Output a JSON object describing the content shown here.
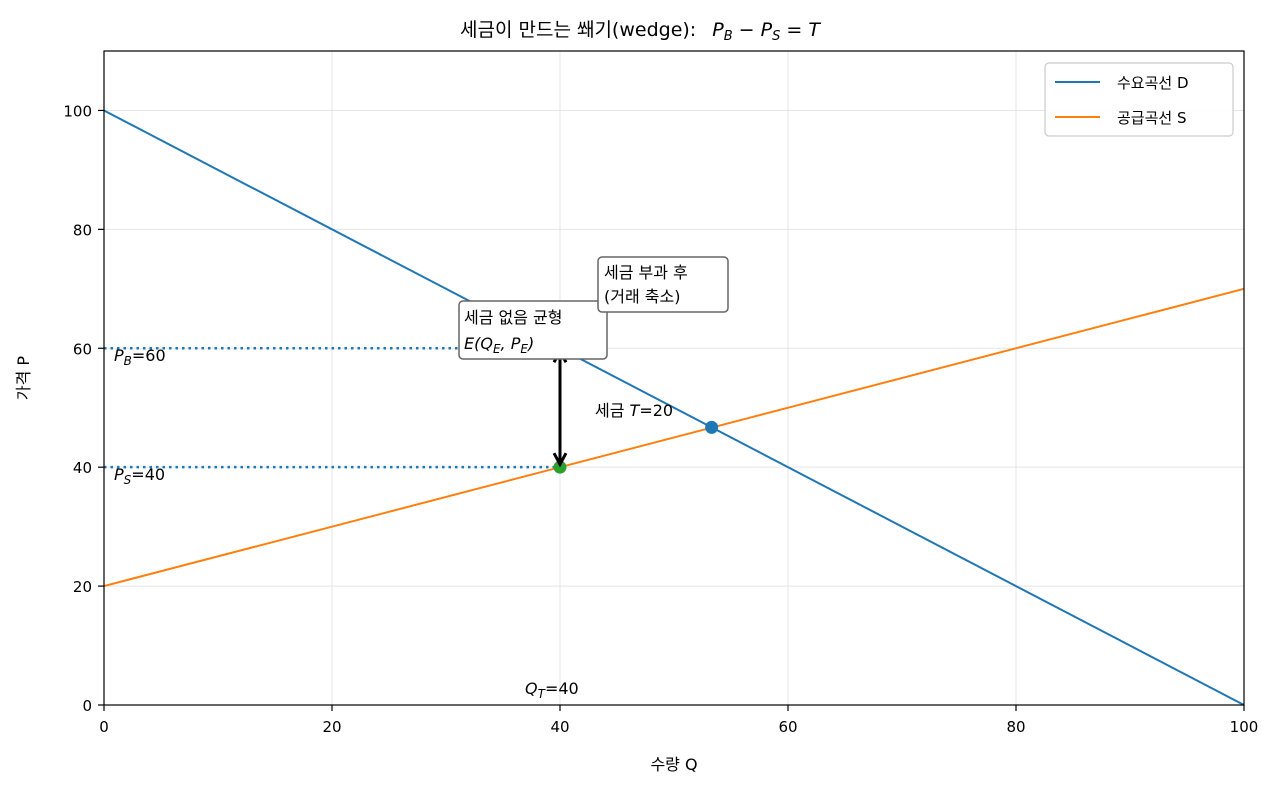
{
  "chart_data": {
    "type": "line",
    "title_main": "세금이 만드는 쐐기(wedge):",
    "title_math": [
      "P",
      "B",
      " − ",
      "P",
      "S",
      " = ",
      "T"
    ],
    "xlabel": "수량 Q",
    "ylabel": "가격 P",
    "xlim": [
      0,
      100
    ],
    "ylim": [
      0,
      110
    ],
    "xticks": [
      0,
      20,
      40,
      60,
      80,
      100
    ],
    "yticks": [
      0,
      20,
      40,
      60,
      80,
      100
    ],
    "grid": true,
    "legend_position": "top-right",
    "colors": {
      "demand": "#1f77b4",
      "supply": "#ff7f0e",
      "tax_point": "#2ca02c",
      "arrow": "#000000",
      "grid": "#e5e5e5"
    },
    "series": [
      {
        "name": "수요곡선 D",
        "x": [
          0,
          100
        ],
        "y": [
          100,
          0
        ]
      },
      {
        "name": "공급곡선 S",
        "x": [
          0,
          100
        ],
        "y": [
          20,
          70
        ]
      }
    ],
    "points": {
      "equilibrium": {
        "x": 53.3,
        "y": 46.7
      },
      "seller_price": {
        "x": 40,
        "y": 40
      },
      "buyer_price": {
        "x": 40,
        "y": 60
      }
    },
    "guides": {
      "pb_y": 60,
      "ps_y": 40,
      "qt_x": 40
    },
    "annotations": {
      "no_tax_line1": "세금 없음 균형",
      "no_tax_line2_parts": [
        "E(Q",
        "E",
        ", P",
        "E",
        ")"
      ],
      "after_tax_line1": "세금 부과 후",
      "after_tax_line2": "(거래 축소)",
      "tax_prefix": "세금 ",
      "tax_var": "T",
      "tax_value": "=20",
      "pb_var": "P",
      "pb_sub": "B",
      "pb_value": "=60",
      "ps_var": "P",
      "ps_sub": "S",
      "ps_value": "=40",
      "qt_var": "Q",
      "qt_sub": "T",
      "qt_value": "=40"
    }
  }
}
